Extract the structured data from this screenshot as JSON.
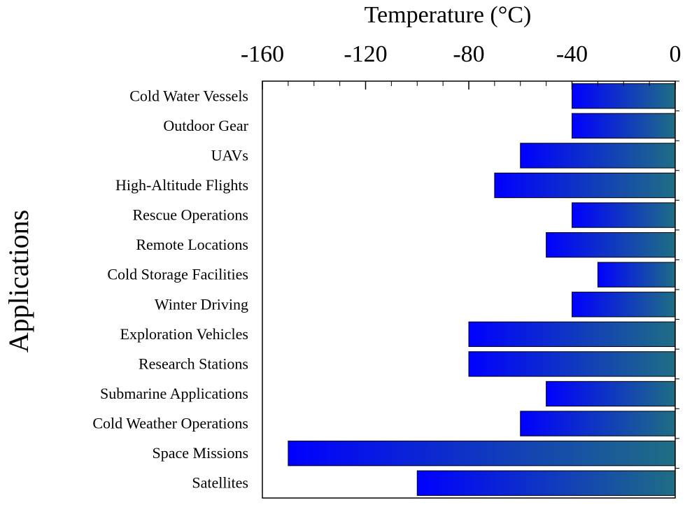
{
  "chart_data": {
    "type": "bar",
    "orientation": "horizontal",
    "title": "",
    "xlabel": "Temperature (°C)",
    "ylabel": "Applications",
    "xaxis_position": "top",
    "xlim": [
      -160,
      0
    ],
    "xticks": [
      "-160",
      "-120",
      "-80",
      "-40",
      "0"
    ],
    "grid": false,
    "legend": "none",
    "categories": [
      "Cold Water Vessels",
      "Outdoor Gear",
      "UAVs",
      "High-Altitude Flights",
      "Rescue Operations",
      "Remote Locations",
      "Cold Storage Facilities",
      "Winter Driving",
      "Exploration Vehicles",
      "Research Stations",
      "Submarine Applications",
      "Cold Weather Operations",
      "Space Missions",
      "Satellites"
    ],
    "values": [
      -40,
      -40,
      -60,
      -70,
      -40,
      -50,
      -30,
      -40,
      -80,
      -80,
      -50,
      -60,
      -150,
      -100
    ],
    "colors": {
      "bar_start": "#0000ff",
      "bar_end": "#1f6e84",
      "axis": "#000000"
    }
  }
}
